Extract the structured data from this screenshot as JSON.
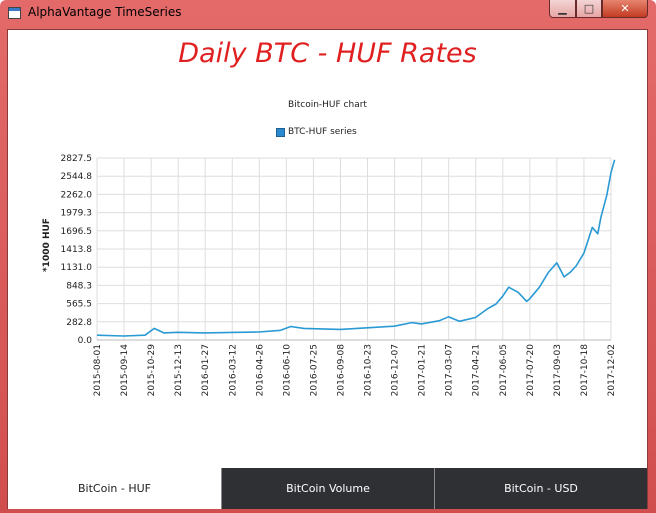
{
  "window": {
    "title": "AlphaVantage TimeSeries"
  },
  "page": {
    "heading": "Daily BTC - HUF Rates"
  },
  "colors": {
    "series": "#2a9ad4",
    "heading": "#e02020",
    "tab_inactive": "#2e3033"
  },
  "tabs": [
    {
      "label": "BitCoin - HUF",
      "active": true
    },
    {
      "label": "BitCoin Volume",
      "active": false
    },
    {
      "label": "BitCoin - USD",
      "active": false
    }
  ],
  "chart_data": {
    "type": "line",
    "title": "Bitcoin-HUF chart",
    "legend": [
      "BTC-HUF series"
    ],
    "ylabel": "*1000 HUF",
    "xlabel": "",
    "ylim": [
      0,
      2827.5
    ],
    "yticks": [
      "0.0",
      "282.8",
      "565.5",
      "848.3",
      "1131.0",
      "1413.8",
      "1696.5",
      "1979.3",
      "2262.0",
      "2544.8",
      "2827.5"
    ],
    "xticks": [
      "2015-08-01",
      "2015-09-14",
      "2015-10-29",
      "2015-12-13",
      "2016-01-27",
      "2016-03-12",
      "2016-04-26",
      "2016-06-10",
      "2016-07-25",
      "2016-09-08",
      "2016-10-23",
      "2016-12-07",
      "2017-01-21",
      "2017-03-07",
      "2017-04-21",
      "2017-06-05",
      "2017-07-20",
      "2017-09-03",
      "2017-10-18",
      "2017-12-02"
    ],
    "grid": true,
    "legend_position": "top",
    "series": [
      {
        "name": "BTC-HUF series",
        "x": [
          "2015-08-01",
          "2015-09-14",
          "2015-10-20",
          "2015-11-04",
          "2015-11-20",
          "2015-12-13",
          "2016-01-27",
          "2016-03-12",
          "2016-04-26",
          "2016-06-01",
          "2016-06-18",
          "2016-07-10",
          "2016-07-25",
          "2016-09-08",
          "2016-10-23",
          "2016-12-07",
          "2017-01-05",
          "2017-01-21",
          "2017-02-20",
          "2017-03-07",
          "2017-03-25",
          "2017-04-21",
          "2017-05-10",
          "2017-05-25",
          "2017-06-05",
          "2017-06-15",
          "2017-07-01",
          "2017-07-15",
          "2017-07-20",
          "2017-08-05",
          "2017-08-20",
          "2017-09-03",
          "2017-09-15",
          "2017-09-25",
          "2017-10-05",
          "2017-10-18",
          "2017-11-01",
          "2017-11-10",
          "2017-11-15",
          "2017-11-25",
          "2017-12-02",
          "2017-12-08"
        ],
        "values": [
          75,
          62,
          75,
          180,
          110,
          120,
          110,
          118,
          125,
          150,
          210,
          180,
          175,
          165,
          190,
          215,
          270,
          250,
          300,
          360,
          290,
          350,
          480,
          560,
          680,
          820,
          740,
          600,
          640,
          820,
          1050,
          1200,
          980,
          1050,
          1150,
          1350,
          1750,
          1650,
          1900,
          2250,
          2600,
          2800
        ]
      }
    ]
  }
}
